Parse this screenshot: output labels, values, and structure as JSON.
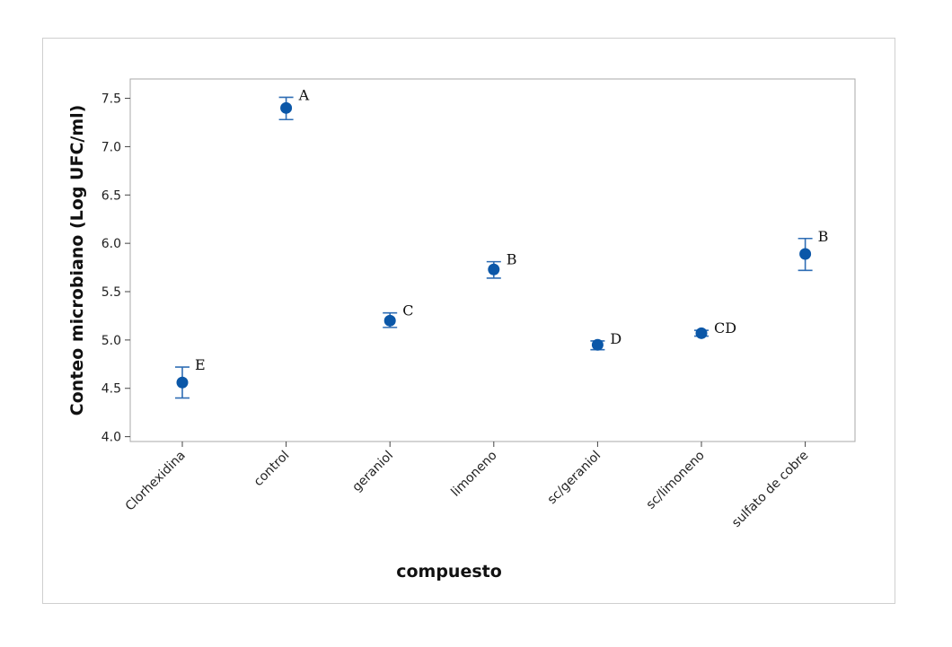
{
  "chart_data": {
    "type": "scatter",
    "variant": "interval-plot",
    "xlabel": "compuesto",
    "ylabel": "Conteo microbiano (Log UFC/ml)",
    "ylim": [
      3.95,
      7.7
    ],
    "yticks": [
      4.0,
      4.5,
      5.0,
      5.5,
      6.0,
      6.5,
      7.0,
      7.5
    ],
    "grid": false,
    "marker_color": "#0b57a8",
    "errorbar_color": "#2e6db4",
    "categories": [
      "Clorhexidina",
      "control",
      "geraniol",
      "limoneno",
      "sc/geraniol",
      "sc/limoneno",
      "sulfato de cobre"
    ],
    "points": [
      {
        "category": "Clorhexidina",
        "mean": 4.56,
        "lower": 4.4,
        "upper": 4.72,
        "group": "E"
      },
      {
        "category": "control",
        "mean": 7.4,
        "lower": 7.28,
        "upper": 7.51,
        "group": "A"
      },
      {
        "category": "geraniol",
        "mean": 5.2,
        "lower": 5.13,
        "upper": 5.28,
        "group": "C"
      },
      {
        "category": "limoneno",
        "mean": 5.73,
        "lower": 5.64,
        "upper": 5.81,
        "group": "B"
      },
      {
        "category": "sc/geraniol",
        "mean": 4.95,
        "lower": 4.9,
        "upper": 4.99,
        "group": "D"
      },
      {
        "category": "sc/limoneno",
        "mean": 5.07,
        "lower": 5.04,
        "upper": 5.1,
        "group": "CD"
      },
      {
        "category": "sulfato de cobre",
        "mean": 5.89,
        "lower": 5.72,
        "upper": 6.05,
        "group": "B"
      }
    ]
  }
}
